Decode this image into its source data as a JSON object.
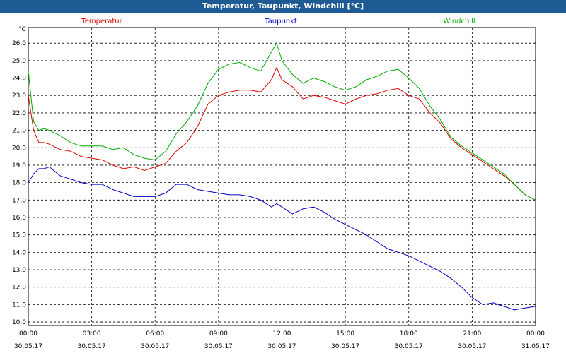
{
  "window": {
    "title": "Temperatur, Taupunkt, Windchill [°C]"
  },
  "chart_data": {
    "type": "line",
    "title": "Temperatur, Taupunkt, Windchill [°C]",
    "ylabel": "°C",
    "xlabel": "",
    "ylim": [
      9.8,
      26.9
    ],
    "xlim": [
      0,
      24
    ],
    "grid": true,
    "legend_position": "top",
    "y_ticks": [
      "10,0",
      "11,0",
      "12,0",
      "13,0",
      "14,0",
      "15,0",
      "16,0",
      "17,0",
      "18,0",
      "19,0",
      "20,0",
      "21,0",
      "22,0",
      "23,0",
      "24,0",
      "25,0",
      "26,0"
    ],
    "x_ticks": [
      {
        "time": "00:00",
        "date": "30.05.17"
      },
      {
        "time": "03:00",
        "date": "30.05.17"
      },
      {
        "time": "06:00",
        "date": "30.05.17"
      },
      {
        "time": "09:00",
        "date": "30.05.17"
      },
      {
        "time": "12:00",
        "date": "30.05.17"
      },
      {
        "time": "15:00",
        "date": "30.05.17"
      },
      {
        "time": "18:00",
        "date": "30.05.17"
      },
      {
        "time": "21:00",
        "date": "30.05.17"
      },
      {
        "time": "00:00",
        "date": "31.05.17"
      }
    ],
    "x_hours": [
      0,
      0.25,
      0.5,
      0.75,
      1,
      1.5,
      2,
      2.5,
      3,
      3.5,
      4,
      4.5,
      5,
      5.5,
      6,
      6.5,
      7,
      7.5,
      8,
      8.5,
      9,
      9.5,
      10,
      10.5,
      11,
      11.5,
      11.75,
      12,
      12.5,
      13,
      13.5,
      14,
      14.5,
      15,
      15.5,
      16,
      16.5,
      17,
      17.5,
      18,
      18.5,
      19,
      19.5,
      20,
      20.5,
      21,
      21.5,
      22,
      22.5,
      23,
      23.5,
      24
    ],
    "series": [
      {
        "name": "Temperatur",
        "color": "#dd0000",
        "values": [
          23.0,
          21.0,
          20.3,
          20.3,
          20.2,
          19.9,
          19.8,
          19.5,
          19.4,
          19.3,
          19.0,
          18.8,
          18.9,
          18.7,
          18.9,
          19.1,
          19.8,
          20.3,
          21.2,
          22.5,
          23.0,
          23.2,
          23.3,
          23.3,
          23.2,
          23.9,
          24.6,
          23.9,
          23.5,
          22.8,
          23.0,
          22.9,
          22.7,
          22.5,
          22.8,
          23.0,
          23.1,
          23.3,
          23.4,
          23.0,
          22.8,
          22.0,
          21.4,
          20.5,
          20.0,
          19.6,
          19.2,
          18.8,
          18.4,
          17.9,
          17.3,
          17.0
        ]
      },
      {
        "name": "Taupunkt",
        "color": "#0000c8",
        "values": [
          18.0,
          18.5,
          18.8,
          18.8,
          18.9,
          18.4,
          18.2,
          18.0,
          17.9,
          17.9,
          17.6,
          17.4,
          17.2,
          17.2,
          17.2,
          17.4,
          17.9,
          17.9,
          17.6,
          17.5,
          17.4,
          17.3,
          17.3,
          17.2,
          17.0,
          16.6,
          16.8,
          16.6,
          16.2,
          16.5,
          16.6,
          16.3,
          15.9,
          15.6,
          15.3,
          15.0,
          14.6,
          14.2,
          14.0,
          13.8,
          13.5,
          13.2,
          12.9,
          12.5,
          12.0,
          11.4,
          11.0,
          11.1,
          10.9,
          10.7,
          10.8,
          10.9
        ]
      },
      {
        "name": "Windchill",
        "color": "#00aa00",
        "values": [
          24.4,
          21.5,
          21.0,
          21.1,
          21.0,
          20.7,
          20.3,
          20.1,
          20.1,
          20.1,
          19.9,
          20.0,
          19.6,
          19.4,
          19.3,
          19.8,
          20.8,
          21.5,
          22.4,
          23.7,
          24.5,
          24.8,
          24.9,
          24.6,
          24.4,
          25.5,
          26.0,
          25.0,
          24.2,
          23.7,
          24.0,
          23.8,
          23.5,
          23.3,
          23.5,
          23.9,
          24.1,
          24.4,
          24.5,
          24.0,
          23.4,
          22.4,
          21.6,
          20.6,
          20.1,
          19.7,
          19.3,
          18.9,
          18.5,
          17.9,
          17.3,
          17.0
        ]
      }
    ]
  }
}
